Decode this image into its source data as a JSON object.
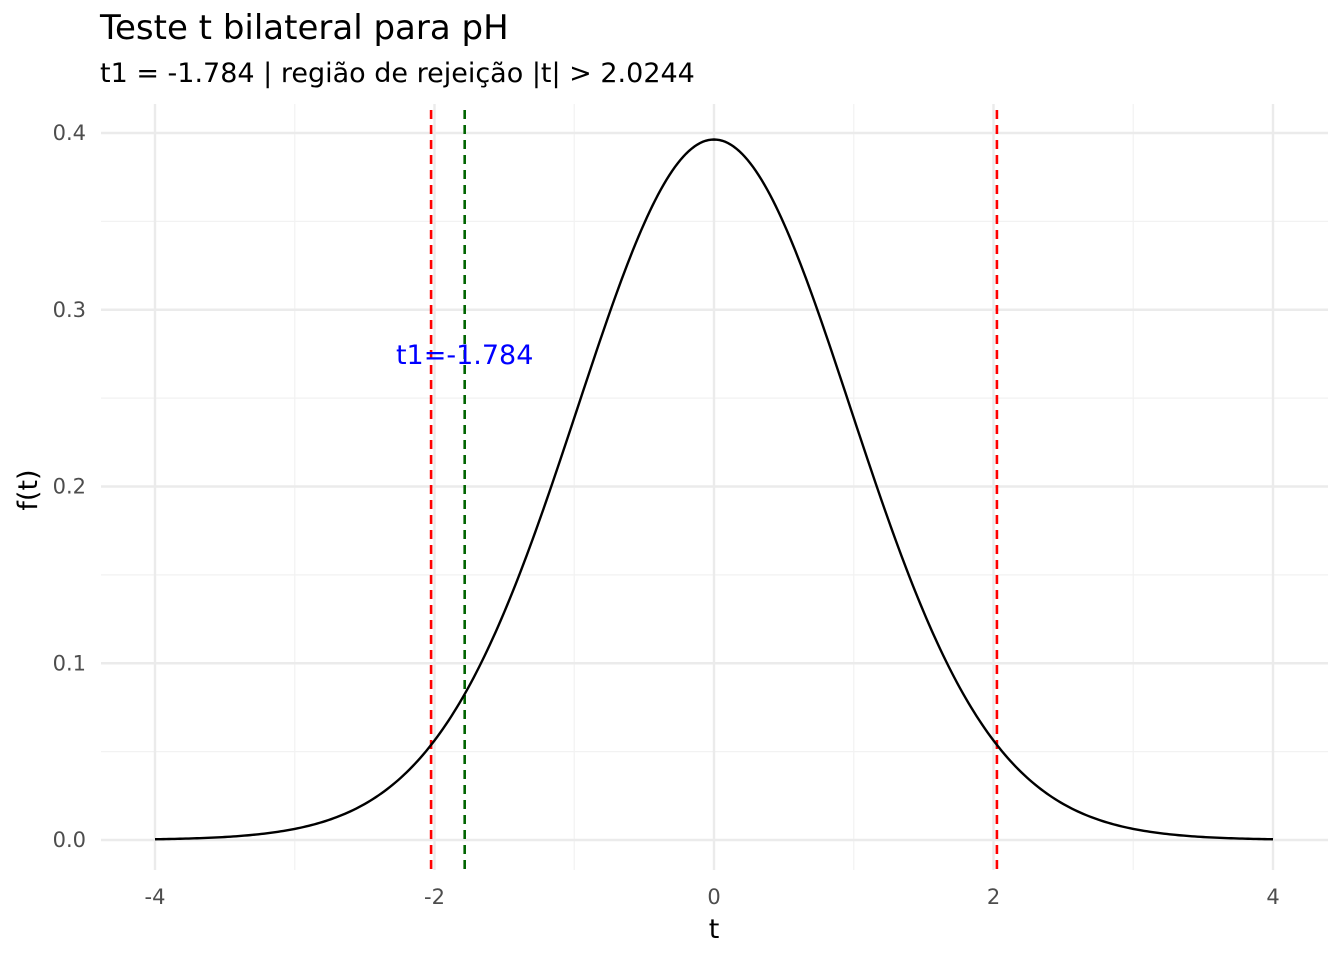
{
  "chart_data": {
    "type": "line",
    "title": "Teste t bilateral para pH",
    "subtitle": "t1 = -1.784  | região de rejeição |t| > 2.0244",
    "xlabel": "t",
    "ylabel": "f(t)",
    "xlim": [
      -4,
      4
    ],
    "ylim": [
      0,
      0.4
    ],
    "x_ticks": [
      -4,
      -2,
      0,
      2,
      4
    ],
    "x_tick_labels": [
      "-4",
      "-2",
      "0",
      "2",
      "4"
    ],
    "y_ticks": [
      0,
      0.1,
      0.2,
      0.3,
      0.4
    ],
    "y_tick_labels": [
      "0.0",
      "0.1",
      "0.2",
      "0.3",
      "0.4"
    ],
    "grid": true,
    "series": [
      {
        "distribution": "Student t",
        "df": 38,
        "x_range": [
          -4,
          4
        ],
        "color": "#000000"
      }
    ],
    "vlines": [
      {
        "x": -2.0244,
        "color": "#ff0000",
        "style": "dashed"
      },
      {
        "x": 2.0244,
        "color": "#ff0000",
        "style": "dashed"
      },
      {
        "x": -1.784,
        "color": "#006400",
        "style": "dashed"
      }
    ],
    "annotations": [
      {
        "text": "t1=-1.784",
        "x": -1.784,
        "y": 0.275,
        "color": "#0000ff"
      }
    ]
  }
}
